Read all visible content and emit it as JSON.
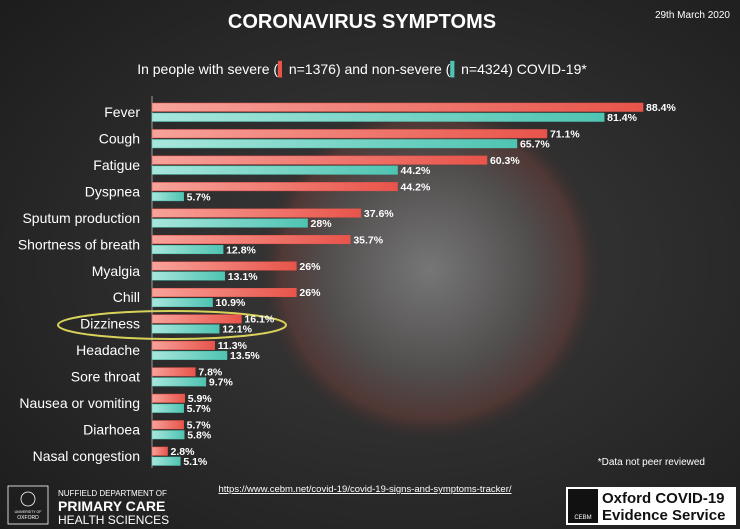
{
  "chart_data": {
    "type": "bar",
    "orientation": "horizontal",
    "title": "CORONAVIRUS SYMPTOMS",
    "date": "29th March 2020",
    "subtitle": {
      "prefix": "In people with severe (",
      "middle": ") and non-severe (",
      "suffix": ") COVID-19*"
    },
    "categories": [
      "Fever",
      "Cough",
      "Fatigue",
      "Dyspnea",
      "Sputum production",
      "Shortness of breath",
      "Myalgia",
      "Chill",
      "Dizziness",
      "Headache",
      "Sore throat",
      "Nausea or vomiting",
      "Diarhoea",
      "Nasal congestion"
    ],
    "series": [
      {
        "name": "n=1376",
        "color": "#e8544a",
        "values": [
          88.4,
          71.1,
          60.3,
          44.2,
          37.6,
          35.7,
          26,
          26,
          16.1,
          11.3,
          7.8,
          5.9,
          5.7,
          2.8
        ],
        "value_labels": [
          "88.4%",
          "71.1%",
          "60.3%",
          "44.2%",
          "37.6%",
          "35.7%",
          "26%",
          "26%",
          "16.1%",
          "11.3%",
          "7.8%",
          "5.9%",
          "5.7%",
          "2.8%"
        ]
      },
      {
        "name": "n=4324",
        "color": "#4fc4b2",
        "values": [
          81.4,
          65.7,
          44.2,
          5.7,
          28,
          12.8,
          13.1,
          10.9,
          12.1,
          13.5,
          9.7,
          5.7,
          5.8,
          5.1
        ],
        "value_labels": [
          "81.4%",
          "65.7%",
          "44.2%",
          "5.7%",
          "28%",
          "12.8%",
          "13.1%",
          "10.9%",
          "12.1%",
          "13.5%",
          "9.7%",
          "5.7%",
          "5.8%",
          "5.1%"
        ]
      }
    ],
    "note": "*Data not peer reviewed",
    "source_url": "https://www.cebm.net/covid-19/covid-19-signs-and-symptoms-tracker/",
    "logos": {
      "oxford_small": [
        "UNIVERSITY OF",
        "OXFORD"
      ],
      "department": [
        "NUFFIELD DEPARTMENT OF",
        "PRIMARY CARE",
        "HEALTH SCIENCES"
      ],
      "cebm": "CEBM",
      "service": [
        "Oxford COVID-19",
        "Evidence Service"
      ]
    }
  }
}
